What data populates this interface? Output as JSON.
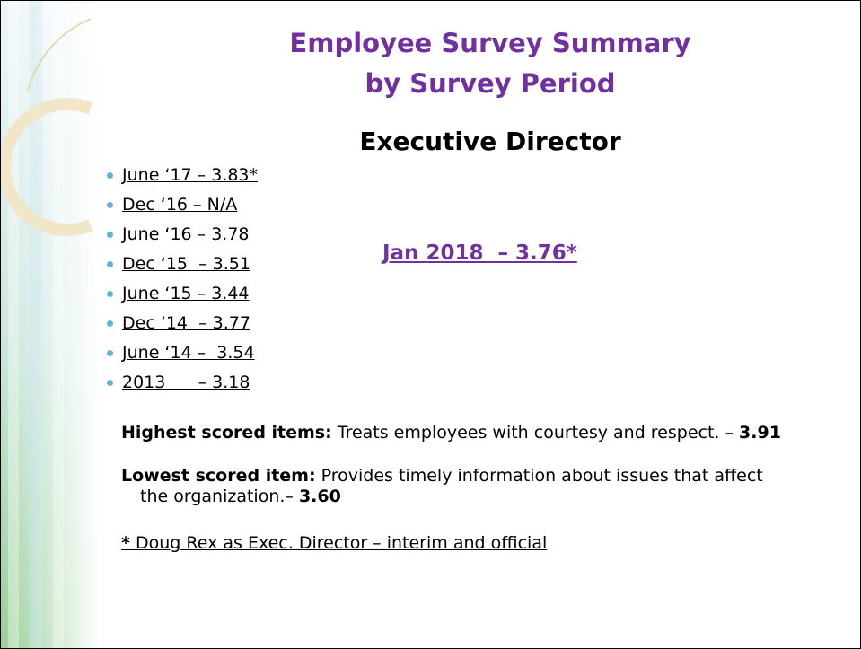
{
  "title": [
    "Employee Survey Summary",
    "by Survey Period"
  ],
  "subtitle": "Executive Director",
  "items": [
    "June ‘17 – 3.83*",
    "Dec ‘16 – N/A",
    "June ‘16 – 3.78",
    "Dec ‘15  – 3.51",
    "June ‘15 – 3.44",
    "Dec ’14  – 3.77",
    "June ‘14 –  3.54",
    "2013      – 3.18"
  ],
  "highlight": "Jan 2018  – 3.76*",
  "highest": {
    "label": "Highest scored items:",
    "text": " Treats employees with courtesy and respect. – ",
    "value": "3.91"
  },
  "lowest": {
    "label": "Lowest scored item:",
    "text": " Provides timely information about issues that affect",
    "text2": "the organization.– ",
    "value": "3.60"
  },
  "footnote": {
    "mark": "*",
    "text": " Doug Rex as Exec. Director – interim and official"
  }
}
